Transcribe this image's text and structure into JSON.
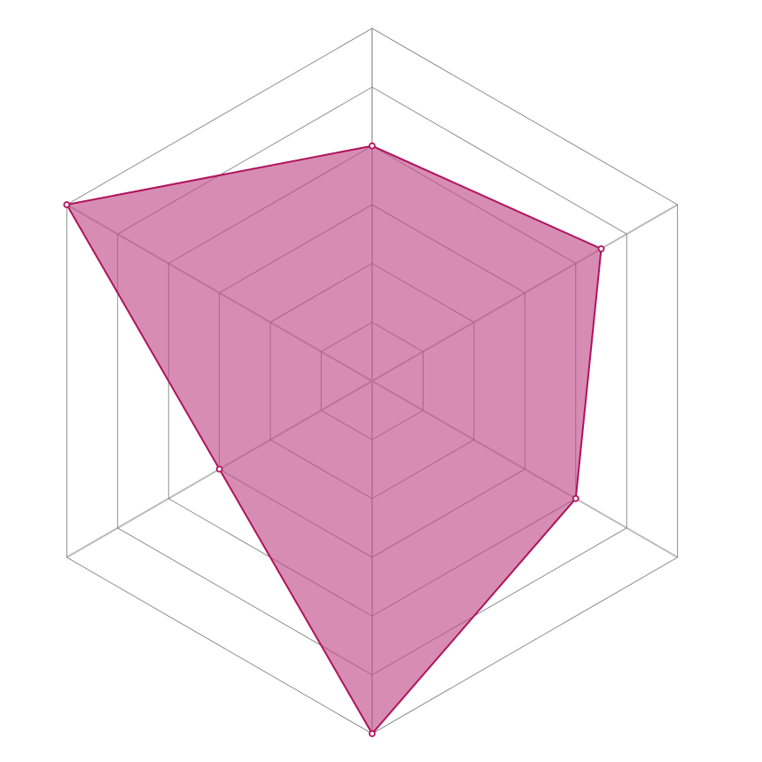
{
  "chart_data": {
    "type": "radar",
    "title": "",
    "axes_count": 6,
    "levels": 6,
    "range": [
      0,
      6
    ],
    "grid": true,
    "series": [
      {
        "values": [
          4,
          4.5,
          4,
          6,
          3,
          6
        ]
      }
    ],
    "colors": {
      "fill": "#c04a86",
      "stroke": "#b0135e",
      "grid": "#777777",
      "spoke": "#bbbbbb"
    }
  }
}
